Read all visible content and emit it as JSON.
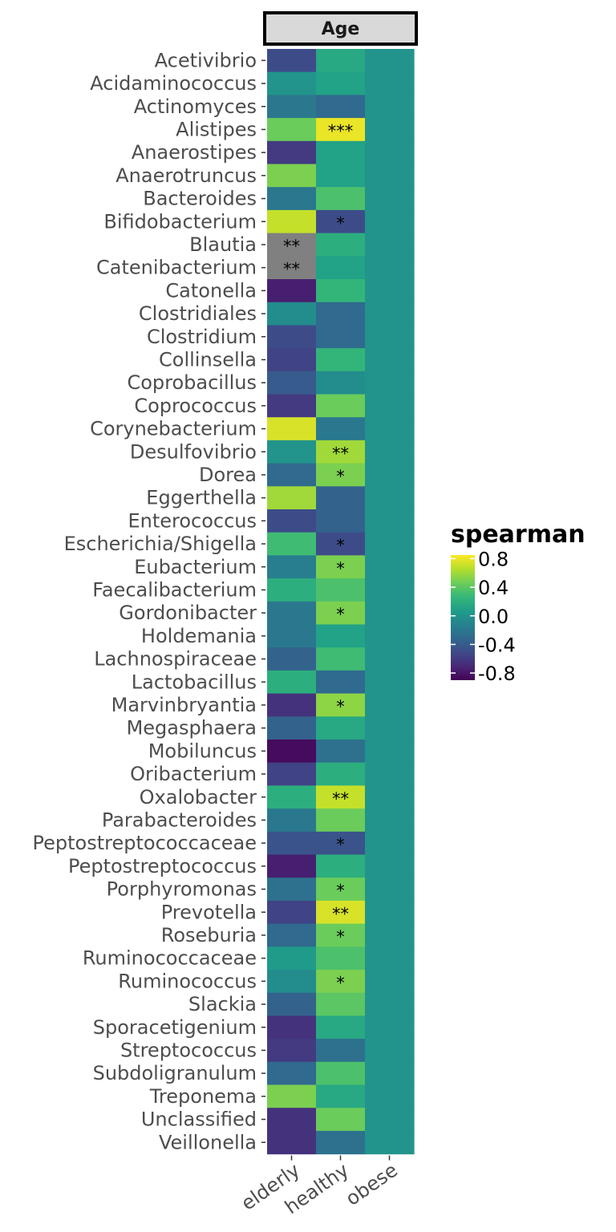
{
  "chart_data": {
    "type": "heatmap",
    "facet": "Age",
    "columns": [
      "elderly",
      "healthy",
      "obese"
    ],
    "rows": [
      "Acetivibrio",
      "Acidaminococcus",
      "Actinomyces",
      "Alistipes",
      "Anaerostipes",
      "Anaerotruncus",
      "Bacteroides",
      "Bifidobacterium",
      "Blautia",
      "Catenibacterium",
      "Catonella",
      "Clostridiales",
      "Clostridium",
      "Collinsella",
      "Coprobacillus",
      "Coprococcus",
      "Corynebacterium",
      "Desulfovibrio",
      "Dorea",
      "Eggerthella",
      "Enterococcus",
      "Escherichia/Shigella",
      "Eubacterium",
      "Faecalibacterium",
      "Gordonibacter",
      "Holdemania",
      "Lachnospiraceae",
      "Lactobacillus",
      "Marvinbryantia",
      "Megasphaera",
      "Mobiluncus",
      "Oribacterium",
      "Oxalobacter",
      "Parabacteroides",
      "Peptostreptococcaceae",
      "Peptostreptococcus",
      "Porphyromonas",
      "Prevotella",
      "Roseburia",
      "Ruminococcaceae",
      "Ruminococcus",
      "Slackia",
      "Sporacetigenium",
      "Streptococcus",
      "Subdoligranulum",
      "Treponema",
      "Unclassified",
      "Veillonella"
    ],
    "values": [
      [
        -0.5,
        0.15,
        0.0
      ],
      [
        0.0,
        0.1,
        0.0
      ],
      [
        -0.2,
        -0.3,
        0.0
      ],
      [
        0.45,
        0.8,
        0.0
      ],
      [
        -0.6,
        0.1,
        0.0
      ],
      [
        0.5,
        0.1,
        0.0
      ],
      [
        -0.2,
        0.35,
        0.0
      ],
      [
        0.7,
        -0.5,
        0.0
      ],
      [
        null,
        0.2,
        0.0
      ],
      [
        null,
        0.1,
        0.0
      ],
      [
        -0.75,
        0.25,
        0.0
      ],
      [
        -0.05,
        -0.3,
        0.0
      ],
      [
        -0.5,
        -0.3,
        0.0
      ],
      [
        -0.55,
        0.25,
        0.0
      ],
      [
        -0.4,
        -0.05,
        0.0
      ],
      [
        -0.6,
        0.45,
        0.0
      ],
      [
        0.75,
        -0.2,
        0.0
      ],
      [
        0.0,
        0.6,
        0.0
      ],
      [
        -0.3,
        0.5,
        0.0
      ],
      [
        0.6,
        -0.35,
        0.0
      ],
      [
        -0.5,
        -0.35,
        0.0
      ],
      [
        0.3,
        -0.5,
        0.0
      ],
      [
        -0.15,
        0.5,
        0.0
      ],
      [
        0.2,
        0.35,
        0.0
      ],
      [
        -0.2,
        0.5,
        0.0
      ],
      [
        -0.2,
        0.1,
        0.0
      ],
      [
        -0.35,
        0.3,
        0.0
      ],
      [
        0.2,
        -0.3,
        0.0
      ],
      [
        -0.65,
        0.55,
        0.0
      ],
      [
        -0.35,
        0.15,
        0.0
      ],
      [
        -0.85,
        -0.25,
        0.0
      ],
      [
        -0.55,
        0.2,
        0.0
      ],
      [
        0.2,
        0.7,
        0.0
      ],
      [
        -0.2,
        0.45,
        0.0
      ],
      [
        -0.45,
        -0.45,
        0.0
      ],
      [
        -0.75,
        0.2,
        0.0
      ],
      [
        -0.25,
        0.45,
        0.0
      ],
      [
        -0.55,
        0.75,
        0.0
      ],
      [
        -0.3,
        0.45,
        0.0
      ],
      [
        0.05,
        0.35,
        0.0
      ],
      [
        -0.05,
        0.5,
        0.0
      ],
      [
        -0.35,
        0.4,
        0.0
      ],
      [
        -0.65,
        0.15,
        0.0
      ],
      [
        -0.6,
        -0.25,
        0.0
      ],
      [
        -0.3,
        0.35,
        0.0
      ],
      [
        0.5,
        0.15,
        0.0
      ],
      [
        -0.65,
        0.45,
        0.0
      ],
      [
        -0.65,
        -0.25,
        0.0
      ]
    ],
    "significance": [
      [
        "",
        "",
        ""
      ],
      [
        "",
        "",
        ""
      ],
      [
        "",
        "",
        ""
      ],
      [
        "",
        "***",
        ""
      ],
      [
        "",
        "",
        ""
      ],
      [
        "",
        "",
        ""
      ],
      [
        "",
        "",
        ""
      ],
      [
        "",
        "*",
        ""
      ],
      [
        "**",
        "",
        ""
      ],
      [
        "**",
        "",
        ""
      ],
      [
        "",
        "",
        ""
      ],
      [
        "",
        "",
        ""
      ],
      [
        "",
        "",
        ""
      ],
      [
        "",
        "",
        ""
      ],
      [
        "",
        "",
        ""
      ],
      [
        "",
        "",
        ""
      ],
      [
        "",
        "",
        ""
      ],
      [
        "",
        "**",
        ""
      ],
      [
        "",
        "*",
        ""
      ],
      [
        "",
        "",
        ""
      ],
      [
        "",
        "",
        ""
      ],
      [
        "",
        "*",
        ""
      ],
      [
        "",
        "*",
        ""
      ],
      [
        "",
        "",
        ""
      ],
      [
        "",
        "*",
        ""
      ],
      [
        "",
        "",
        ""
      ],
      [
        "",
        "",
        ""
      ],
      [
        "",
        "",
        ""
      ],
      [
        "",
        "*",
        ""
      ],
      [
        "",
        "",
        ""
      ],
      [
        "",
        "",
        ""
      ],
      [
        "",
        "",
        ""
      ],
      [
        "",
        "**",
        ""
      ],
      [
        "",
        "",
        ""
      ],
      [
        "",
        "*",
        ""
      ],
      [
        "",
        "",
        ""
      ],
      [
        "",
        "*",
        ""
      ],
      [
        "",
        "**",
        ""
      ],
      [
        "",
        "*",
        ""
      ],
      [
        "",
        "",
        ""
      ],
      [
        "",
        "*",
        ""
      ],
      [
        "",
        "",
        ""
      ],
      [
        "",
        "",
        ""
      ],
      [
        "",
        "",
        ""
      ],
      [
        "",
        "",
        ""
      ],
      [
        "",
        "",
        ""
      ],
      [
        "",
        "",
        ""
      ],
      [
        "",
        "",
        ""
      ]
    ],
    "na_color": "#808080",
    "legend": {
      "title": "spearman",
      "ticks": [
        "0.8",
        "0.4",
        "0.0",
        "-0.4",
        "-0.8"
      ],
      "range": [
        -0.9,
        0.85
      ],
      "placement": "right"
    },
    "colormap": "viridis"
  }
}
